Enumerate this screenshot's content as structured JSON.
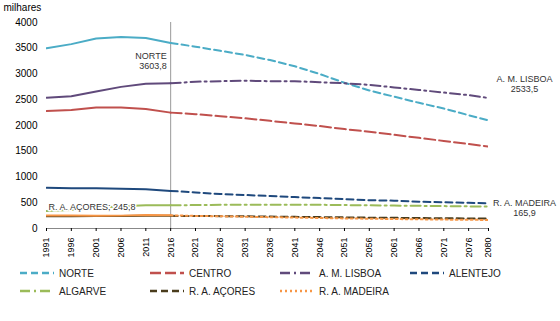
{
  "chart_data": {
    "type": "line",
    "y_label": "milhares",
    "x": [
      1991,
      1996,
      2001,
      2006,
      2011,
      2016,
      2021,
      2026,
      2031,
      2036,
      2041,
      2046,
      2051,
      2056,
      2061,
      2066,
      2071,
      2076,
      2080
    ],
    "xlim": [
      1991,
      2080
    ],
    "xticks": [
      1991,
      1996,
      2001,
      2006,
      2011,
      2016,
      2021,
      2026,
      2031,
      2036,
      2041,
      2046,
      2051,
      2056,
      2061,
      2066,
      2071,
      2076,
      2080
    ],
    "ylim": [
      0,
      4000
    ],
    "yticks": [
      0,
      500,
      1000,
      1500,
      2000,
      2500,
      3000,
      3500,
      4000
    ],
    "grid": false,
    "legend": "bottom",
    "reference_line": {
      "x": 2016
    },
    "series": [
      {
        "name": "NORTE",
        "color": "#4bacc6",
        "line_style": "dashed",
        "values": [
          3500,
          3580,
          3690,
          3720,
          3700,
          3603.8,
          3530,
          3450,
          3370,
          3270,
          3150,
          3000,
          2830,
          2680,
          2560,
          2440,
          2330,
          2200,
          2100
        ]
      },
      {
        "name": "CENTRO",
        "color": "#c0504d",
        "line_style": "longdash",
        "values": [
          2280,
          2300,
          2350,
          2350,
          2320,
          2250,
          2220,
          2180,
          2140,
          2090,
          2040,
          1990,
          1930,
          1880,
          1820,
          1760,
          1700,
          1640,
          1590
        ]
      },
      {
        "name": "A. M. LISBOA",
        "color": "#604a7b",
        "line_style": "dashdot",
        "values": [
          2540,
          2570,
          2660,
          2750,
          2810,
          2820,
          2850,
          2860,
          2870,
          2860,
          2860,
          2840,
          2820,
          2790,
          2740,
          2690,
          2640,
          2590,
          2533.5
        ]
      },
      {
        "name": "ALENTEJO",
        "color": "#1f497d",
        "line_style": "dashed",
        "values": [
          790,
          780,
          780,
          770,
          760,
          730,
          700,
          670,
          650,
          630,
          610,
          590,
          570,
          550,
          540,
          520,
          510,
          500,
          490
        ]
      },
      {
        "name": "ALGARVE",
        "color": "#9bbb59",
        "line_style": "dashdot",
        "values": [
          340,
          360,
          400,
          430,
          450,
          450,
          455,
          460,
          460,
          460,
          460,
          460,
          455,
          450,
          445,
          440,
          435,
          430,
          425
        ]
      },
      {
        "name": "R. A. AÇORES",
        "color": "#4a3c1c",
        "line_style": "dashed",
        "values": [
          238,
          240,
          242,
          244,
          247,
          245.8,
          243,
          240,
          236,
          231,
          226,
          221,
          216,
          211,
          207,
          203,
          199,
          196,
          193
        ]
      },
      {
        "name": "R. A. MADEIRA",
        "color": "#f79646",
        "line_style": "dotted",
        "values": [
          253,
          252,
          248,
          250,
          262,
          255,
          245,
          237,
          228,
          220,
          212,
          204,
          196,
          190,
          184,
          178,
          173,
          169,
          165.9
        ]
      }
    ],
    "annotations": [
      {
        "text": "NORTE\n3603,8",
        "series": "NORTE",
        "x": 2016
      },
      {
        "text": "A. M. LISBOA\n2533,5",
        "series": "A. M. LISBOA",
        "x": 2080
      },
      {
        "text": "R. A. AÇORES; 245,8",
        "series": "R. A. AÇORES",
        "x": 1991
      },
      {
        "text": "R. A. MADEIRA\n165,9",
        "series": "R. A. MADEIRA",
        "x": 2080
      }
    ]
  }
}
